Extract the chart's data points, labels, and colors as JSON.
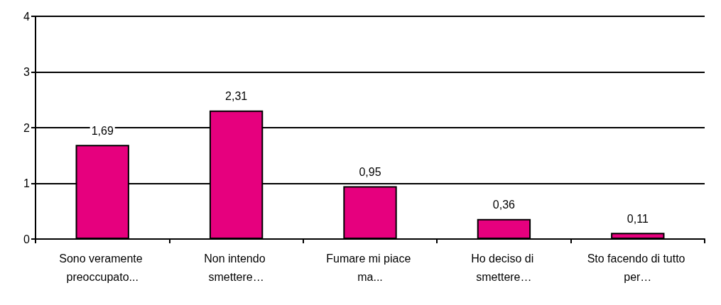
{
  "chart_data": {
    "type": "bar",
    "categories": [
      "Sono veramente preoccupato...",
      "Non intendo smettere…",
      "Fumare mi piace ma...",
      "Ho deciso di smettere…",
      "Sto facendo di tutto per…"
    ],
    "values": [
      1.69,
      2.31,
      0.95,
      0.36,
      0.11
    ],
    "value_labels": [
      "1,69",
      "2,31",
      "0,95",
      "0,36",
      "0,11"
    ],
    "color": "#e6007e",
    "ylim": [
      0,
      4
    ],
    "yticks": [
      0,
      1,
      2,
      3,
      4
    ],
    "grid": "y"
  }
}
